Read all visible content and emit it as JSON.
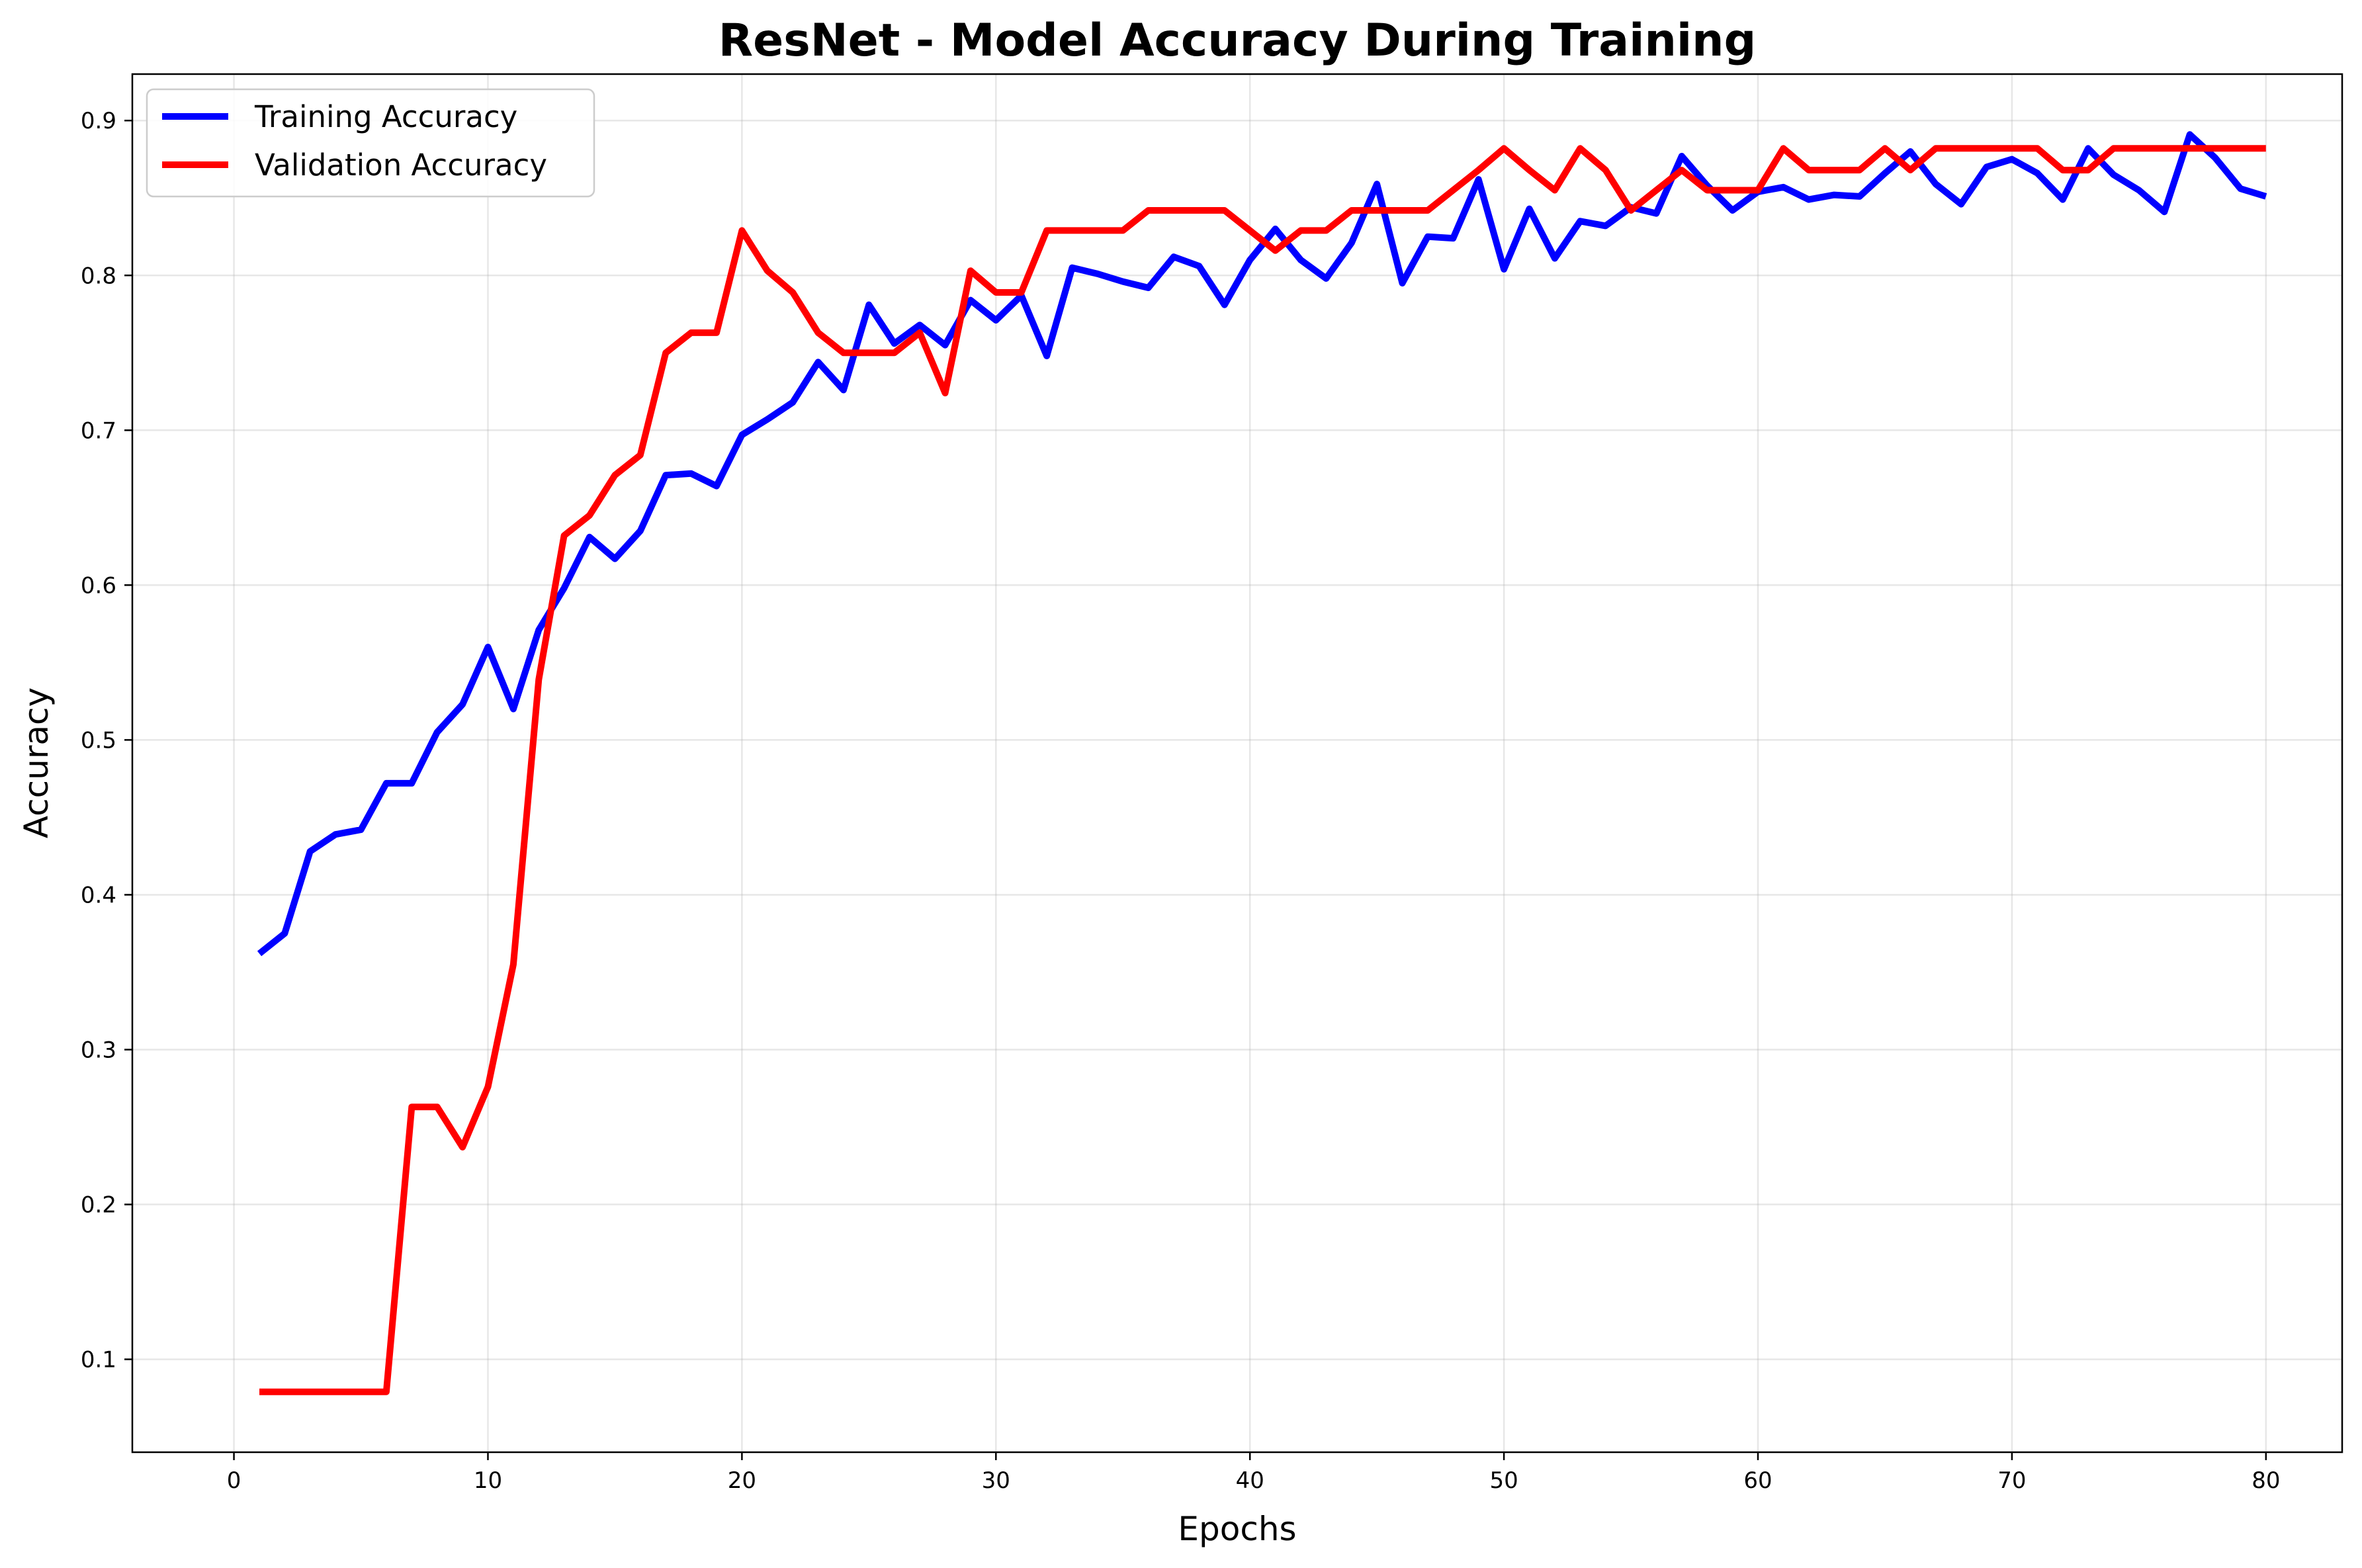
{
  "chart_data": {
    "type": "line",
    "title": "ResNet - Model Accuracy During Training",
    "xlabel": "Epochs",
    "ylabel": "Accuracy",
    "xlim": [
      -4,
      83
    ],
    "ylim": [
      0.04,
      0.93
    ],
    "xticks": [
      0,
      10,
      20,
      30,
      40,
      50,
      60,
      70,
      80
    ],
    "yticks": [
      0.1,
      0.2,
      0.3,
      0.4,
      0.5,
      0.6,
      0.7,
      0.8,
      0.9
    ],
    "grid": true,
    "legend_position": "top-left",
    "x": [
      1,
      2,
      3,
      4,
      5,
      6,
      7,
      8,
      9,
      10,
      11,
      12,
      13,
      14,
      15,
      16,
      17,
      18,
      19,
      20,
      21,
      22,
      23,
      24,
      25,
      26,
      27,
      28,
      29,
      30,
      31,
      32,
      33,
      34,
      35,
      36,
      37,
      38,
      39,
      40,
      41,
      42,
      43,
      44,
      45,
      46,
      47,
      48,
      49,
      50,
      51,
      52,
      53,
      54,
      55,
      56,
      57,
      58,
      59,
      60,
      61,
      62,
      63,
      64,
      65,
      66,
      67,
      68,
      69,
      70,
      71,
      72,
      73,
      74,
      75,
      76,
      77,
      78,
      79,
      80
    ],
    "series": [
      {
        "name": "Training Accuracy",
        "color": "#0000ff",
        "values": [
          0.362,
          0.375,
          0.428,
          0.439,
          0.442,
          0.472,
          0.472,
          0.505,
          0.523,
          0.56,
          0.52,
          0.571,
          0.598,
          0.631,
          0.617,
          0.635,
          0.671,
          0.672,
          0.664,
          0.697,
          0.707,
          0.718,
          0.744,
          0.726,
          0.781,
          0.756,
          0.768,
          0.755,
          0.784,
          0.771,
          0.787,
          0.748,
          0.805,
          0.801,
          0.796,
          0.792,
          0.812,
          0.806,
          0.781,
          0.81,
          0.83,
          0.81,
          0.798,
          0.821,
          0.859,
          0.795,
          0.825,
          0.824,
          0.862,
          0.804,
          0.843,
          0.811,
          0.835,
          0.832,
          0.844,
          0.84,
          0.877,
          0.858,
          0.842,
          0.854,
          0.857,
          0.849,
          0.852,
          0.851,
          0.866,
          0.88,
          0.859,
          0.846,
          0.87,
          0.875,
          0.866,
          0.849,
          0.882,
          0.865,
          0.855,
          0.841,
          0.891,
          0.876,
          0.856,
          0.851
        ]
      },
      {
        "name": "Validation Accuracy",
        "color": "#ff0000",
        "values": [
          0.079,
          0.079,
          0.079,
          0.079,
          0.079,
          0.079,
          0.263,
          0.263,
          0.237,
          0.276,
          0.355,
          0.539,
          0.632,
          0.645,
          0.671,
          0.684,
          0.75,
          0.763,
          0.763,
          0.829,
          0.803,
          0.789,
          0.763,
          0.75,
          0.75,
          0.75,
          0.763,
          0.724,
          0.803,
          0.789,
          0.789,
          0.829,
          0.829,
          0.829,
          0.829,
          0.842,
          0.842,
          0.842,
          0.842,
          0.829,
          0.816,
          0.829,
          0.829,
          0.842,
          0.842,
          0.842,
          0.842,
          0.855,
          0.868,
          0.882,
          0.868,
          0.855,
          0.882,
          0.868,
          0.842,
          0.855,
          0.868,
          0.855,
          0.855,
          0.855,
          0.882,
          0.868,
          0.868,
          0.868,
          0.882,
          0.868,
          0.882,
          0.882,
          0.882,
          0.882,
          0.882,
          0.868,
          0.868,
          0.882,
          0.882,
          0.882,
          0.882,
          0.882,
          0.882,
          0.882
        ]
      }
    ]
  }
}
